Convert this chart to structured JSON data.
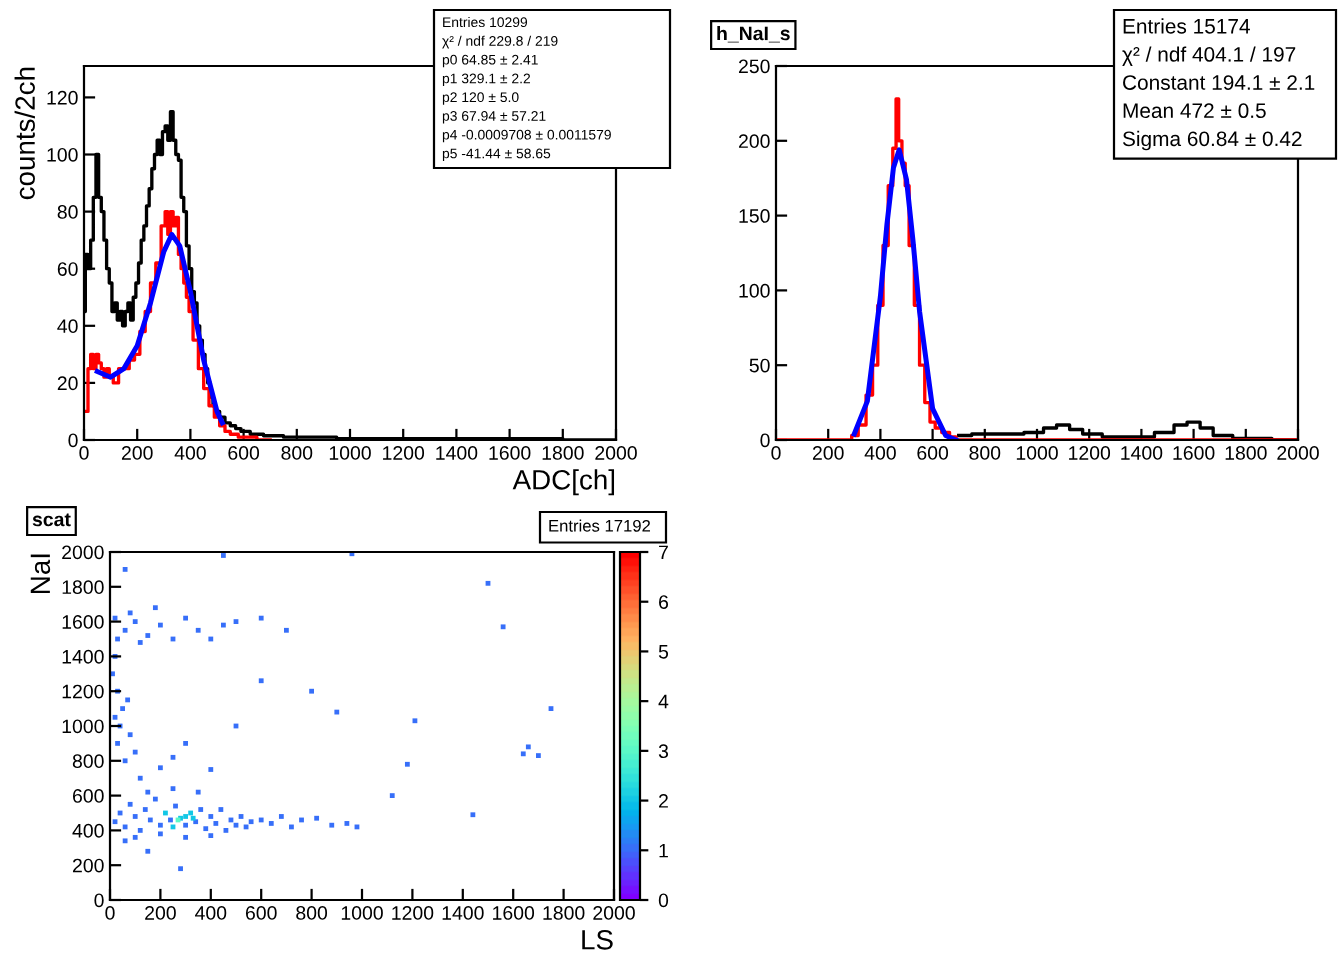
{
  "chart_data": [
    {
      "type": "step",
      "xlabel": "ADC[ch]",
      "ylabel": "counts/2ch",
      "xlim": [
        0,
        2000
      ],
      "ylim": [
        0,
        131
      ],
      "xticks": [
        0,
        200,
        400,
        600,
        800,
        1000,
        1200,
        1400,
        1600,
        1800,
        2000
      ],
      "yticks": [
        0,
        20,
        40,
        60,
        80,
        100,
        120
      ],
      "annotations": [
        "Entries 10299",
        "χ² / ndf 229.8 / 219",
        "p0 64.85 ± 2.41",
        "p1 329.1 ± 2.2",
        "p2 120 ± 5.0",
        "p3 67.94 ± 57.21",
        "p4 -0.0009708 ± 0.0011579",
        "p5 -41.44 ± 58.65"
      ],
      "series": [
        {
          "type": "step",
          "color": "#000000",
          "x": [
            0,
            10,
            20,
            30,
            40,
            50,
            60,
            70,
            80,
            90,
            100,
            110,
            120,
            130,
            140,
            150,
            160,
            170,
            180,
            190,
            200,
            210,
            220,
            230,
            240,
            250,
            260,
            270,
            280,
            290,
            300,
            310,
            320,
            330,
            340,
            350,
            360,
            370,
            380,
            390,
            400,
            410,
            420,
            430,
            440,
            450,
            460,
            470,
            480,
            490,
            500,
            520,
            540,
            560,
            580,
            600,
            650,
            700,
            800,
            900,
            1000,
            1200,
            1600,
            2000
          ],
          "values": [
            45,
            65,
            60,
            70,
            85,
            100,
            85,
            80,
            70,
            60,
            55,
            45,
            48,
            42,
            45,
            40,
            45,
            48,
            42,
            50,
            55,
            62,
            70,
            75,
            82,
            88,
            95,
            100,
            105,
            100,
            108,
            110,
            105,
            115,
            105,
            100,
            98,
            85,
            80,
            68,
            60,
            52,
            48,
            40,
            35,
            30,
            25,
            20,
            15,
            12,
            10,
            8,
            6,
            5,
            4,
            3,
            2,
            1.5,
            1,
            1,
            0.5,
            0.5,
            0.5,
            0
          ]
        },
        {
          "type": "step",
          "color": "#ff0000",
          "x": [
            10,
            20,
            30,
            40,
            50,
            60,
            70,
            80,
            90,
            100,
            120,
            140,
            160,
            180,
            200,
            220,
            240,
            260,
            280,
            300,
            310,
            320,
            330,
            340,
            350,
            360,
            370,
            380,
            390,
            400,
            420,
            440,
            460,
            480,
            500,
            520,
            540,
            560,
            600,
            700
          ],
          "values": [
            10,
            25,
            30,
            25,
            30,
            27,
            25,
            22,
            25,
            22,
            20,
            25,
            25,
            28,
            30,
            38,
            45,
            55,
            62,
            75,
            80,
            72,
            80,
            75,
            78,
            65,
            60,
            55,
            50,
            45,
            35,
            25,
            18,
            12,
            8,
            5,
            3,
            2,
            1,
            0
          ]
        },
        {
          "type": "line",
          "color": "#0000ff",
          "x": [
            50,
            100,
            150,
            200,
            250,
            300,
            330,
            360,
            400,
            450,
            500,
            520
          ],
          "values": [
            24,
            22,
            25,
            33,
            48,
            66,
            72,
            68,
            52,
            28,
            10,
            6
          ]
        }
      ]
    },
    {
      "type": "step",
      "title": "h_NaI_s",
      "xlim": [
        0,
        2000
      ],
      "ylim": [
        0,
        250
      ],
      "xticks": [
        0,
        200,
        400,
        600,
        800,
        1000,
        1200,
        1400,
        1600,
        1800,
        2000
      ],
      "yticks": [
        0,
        50,
        100,
        150,
        200,
        250
      ],
      "annotations": [
        "Entries 15174",
        "χ² / ndf 404.1 / 197",
        "Constant 194.1 ± 2.1",
        "Mean 472 ± 0.5",
        "Sigma 60.84 ± 0.42"
      ],
      "series": [
        {
          "type": "step",
          "color": "#000000",
          "x": [
            700,
            800,
            900,
            1000,
            1050,
            1100,
            1150,
            1200,
            1300,
            1400,
            1500,
            1550,
            1600,
            1650,
            1700,
            1800,
            2000
          ],
          "values": [
            3,
            4,
            4,
            5,
            8,
            10,
            7,
            4,
            2,
            2,
            5,
            10,
            12,
            8,
            3,
            1,
            0
          ]
        },
        {
          "type": "step",
          "color": "#ff0000",
          "x": [
            0,
            280,
            300,
            330,
            360,
            380,
            400,
            420,
            440,
            455,
            465,
            475,
            490,
            500,
            520,
            540,
            560,
            580,
            600,
            620,
            650,
            680,
            700,
            2000
          ],
          "values": [
            0,
            0,
            3,
            10,
            30,
            50,
            90,
            130,
            170,
            195,
            228,
            200,
            185,
            170,
            130,
            90,
            50,
            25,
            12,
            8,
            5,
            2,
            0,
            0
          ]
        },
        {
          "type": "line",
          "color": "#0000ff",
          "x": [
            300,
            350,
            400,
            425,
            450,
            472,
            500,
            525,
            550,
            600,
            650,
            690
          ],
          "values": [
            4,
            26,
            96,
            144,
            182,
            194,
            174,
            133,
            86,
            21,
            3,
            0
          ]
        }
      ]
    },
    {
      "type": "scatter",
      "title": "scat",
      "xlabel": "LS",
      "ylabel": "NaI",
      "marker": "square",
      "xlim": [
        0,
        2000
      ],
      "ylim": [
        0,
        2000
      ],
      "xticks": [
        0,
        200,
        400,
        600,
        800,
        1000,
        1200,
        1400,
        1600,
        1800,
        2000
      ],
      "yticks": [
        0,
        200,
        400,
        600,
        800,
        1000,
        1200,
        1400,
        1600,
        1800,
        2000
      ],
      "clim": [
        0,
        7
      ],
      "cticks": [
        0,
        1,
        2,
        3,
        4,
        5,
        6,
        7
      ],
      "annotations": [
        "Entries 17192"
      ],
      "x": [
        20,
        40,
        60,
        80,
        100,
        120,
        140,
        160,
        180,
        200,
        220,
        240,
        260,
        280,
        300,
        320,
        340,
        360,
        380,
        400,
        420,
        440,
        460,
        480,
        500,
        520,
        540,
        560,
        600,
        640,
        680,
        720,
        760,
        820,
        880,
        940,
        980,
        270,
        300,
        330,
        250,
        200,
        100,
        60,
        300,
        400,
        150,
        250,
        350,
        120,
        200,
        60,
        30,
        100,
        250,
        400,
        300,
        20,
        50,
        40,
        70,
        30,
        80,
        10,
        20,
        30,
        60,
        100,
        150,
        200,
        250,
        300,
        350,
        400,
        450,
        500,
        80,
        20,
        120,
        180,
        600,
        700,
        60,
        450,
        960,
        1500,
        1560,
        1750,
        1660,
        1700,
        1640,
        1210,
        1180,
        1440,
        1120,
        280,
        150,
        900,
        600,
        500,
        800
      ],
      "values": [
        450,
        500,
        420,
        550,
        480,
        400,
        520,
        460,
        580,
        430,
        500,
        460,
        540,
        470,
        430,
        500,
        450,
        520,
        410,
        480,
        440,
        520,
        400,
        460,
        430,
        480,
        420,
        450,
        460,
        440,
        480,
        420,
        460,
        470,
        430,
        440,
        420,
        460,
        480,
        470,
        420,
        380,
        360,
        340,
        360,
        370,
        620,
        640,
        620,
        700,
        760,
        800,
        900,
        850,
        820,
        750,
        900,
        1050,
        1100,
        1000,
        1150,
        1200,
        950,
        1300,
        1400,
        1500,
        1550,
        1600,
        1520,
        1580,
        1500,
        1620,
        1550,
        1500,
        1580,
        1600,
        1650,
        1620,
        1480,
        1680,
        1620,
        1550,
        1900,
        1980,
        1990,
        1820,
        1570,
        1100,
        880,
        830,
        840,
        1030,
        780,
        490,
        600,
        180,
        280,
        1080,
        1260,
        1000,
        1200
      ],
      "cvalues": [
        1,
        1,
        1,
        1,
        1,
        1,
        1,
        1,
        1,
        1,
        2,
        1,
        1,
        2,
        1,
        2,
        1,
        1,
        1,
        1,
        1,
        1,
        1,
        1,
        1,
        1,
        1,
        1,
        1,
        1,
        1,
        1,
        1,
        1,
        1,
        1,
        1,
        3,
        2,
        2,
        2,
        1,
        1,
        1,
        1,
        1,
        1,
        1,
        1,
        1,
        1,
        1,
        1,
        1,
        1,
        1,
        1,
        1,
        1,
        1,
        1,
        1,
        1,
        1,
        1,
        1,
        1,
        1,
        1,
        1,
        1,
        1,
        1,
        1,
        1,
        1,
        1,
        1,
        1,
        1,
        1,
        1,
        1,
        1,
        1,
        1,
        1,
        1,
        1,
        1,
        1,
        1,
        1,
        1,
        1,
        1,
        1,
        1,
        1,
        1,
        1
      ]
    }
  ]
}
